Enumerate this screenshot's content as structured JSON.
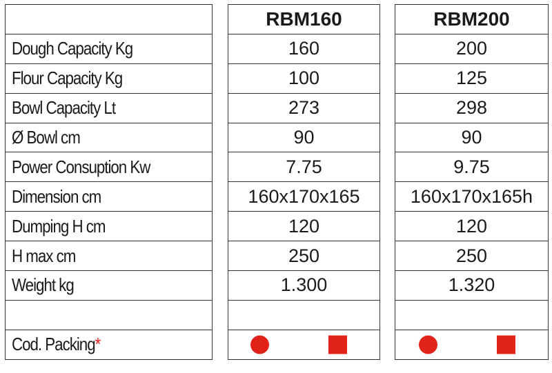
{
  "colors": {
    "marker": "#e2231a",
    "border": "#333333"
  },
  "rows": [
    "Dough Capacity Kg",
    "Flour Capacity Kg",
    "Bowl Capacity Lt",
    "Ø Bowl cm",
    "Power Consuption Kw",
    "Dimension cm",
    "Dumping H cm",
    "H max cm",
    "Weight kg",
    ""
  ],
  "packing": {
    "label": "Cod. Packing",
    "asterisk": "*",
    "icons": [
      "red-circle-icon",
      "red-square-icon"
    ]
  },
  "models": [
    {
      "name": "RBM160",
      "values": [
        "160",
        "100",
        "273",
        "90",
        "7.75",
        "160x170x165",
        "120",
        "250",
        "1.300",
        ""
      ]
    },
    {
      "name": "RBM200",
      "values": [
        "200",
        "125",
        "298",
        "90",
        "9.75",
        "160x170x165h",
        "120",
        "250",
        "1.320",
        ""
      ]
    }
  ]
}
